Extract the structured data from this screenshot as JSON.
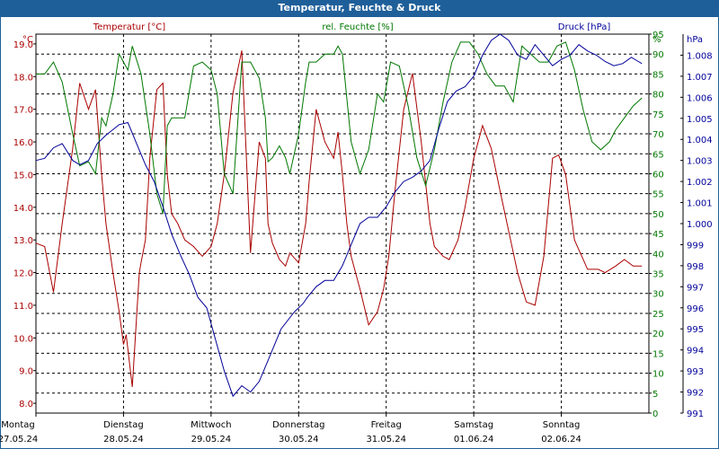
{
  "title": "Temperatur, Feuchte & Druck",
  "colors": {
    "temperature": "#aa0000",
    "humidity": "#007700",
    "pressure": "#000099",
    "titlebar": "#1f5f99"
  },
  "chart_data": {
    "type": "line",
    "series": [
      {
        "name": "Temperatur [°C]",
        "axis": "left",
        "x": [
          0,
          0.1,
          0.2,
          0.3,
          0.42,
          0.5,
          0.6,
          0.68,
          0.75,
          0.8,
          0.88,
          0.95,
          1.0,
          1.03,
          1.1,
          1.18,
          1.2,
          1.25,
          1.3,
          1.38,
          1.45,
          1.5,
          1.55,
          1.62,
          1.7,
          1.8,
          1.9,
          2.0,
          2.07,
          2.15,
          2.25,
          2.35,
          2.45,
          2.55,
          2.62,
          2.65,
          2.7,
          2.78,
          2.85,
          2.9,
          3.0,
          3.08,
          3.12,
          3.2,
          3.3,
          3.4,
          3.45,
          3.5,
          3.55,
          3.6,
          3.7,
          3.8,
          3.9,
          3.97,
          4.03,
          4.1,
          4.2,
          4.3,
          4.4,
          4.5,
          4.55,
          4.65,
          4.72,
          4.82,
          4.9,
          5.0,
          5.1,
          5.2,
          5.3,
          5.42,
          5.5,
          5.6,
          5.7,
          5.8,
          5.9,
          5.97,
          6.05,
          6.15,
          6.3,
          6.42,
          6.5,
          6.62,
          6.72,
          6.82,
          6.92
        ],
        "values": [
          12.9,
          12.8,
          11.4,
          13.5,
          15.8,
          17.8,
          17.0,
          17.6,
          15.0,
          13.5,
          12.0,
          10.8,
          9.8,
          10.1,
          8.5,
          12.0,
          12.3,
          13.0,
          15.5,
          17.6,
          17.8,
          15.0,
          13.8,
          13.5,
          13.0,
          12.8,
          12.5,
          12.8,
          13.5,
          15.0,
          17.5,
          18.8,
          12.6,
          16.0,
          15.5,
          13.5,
          12.9,
          12.4,
          12.2,
          12.6,
          12.3,
          13.5,
          14.8,
          17.0,
          16.0,
          15.5,
          16.3,
          15.0,
          13.5,
          12.5,
          11.5,
          10.4,
          10.8,
          11.5,
          12.5,
          14.5,
          17.0,
          18.1,
          16.0,
          13.5,
          12.8,
          12.5,
          12.4,
          13.0,
          14.0,
          15.5,
          16.5,
          15.8,
          14.5,
          13.0,
          12.0,
          11.1,
          11.0,
          12.5,
          15.5,
          15.6,
          15.0,
          13.0,
          12.1,
          12.1,
          12.0,
          12.2,
          12.4,
          12.2,
          12.2
        ]
      },
      {
        "name": "rel. Feuchte [%]",
        "axis": "right1",
        "x": [
          0,
          0.1,
          0.2,
          0.3,
          0.42,
          0.5,
          0.6,
          0.68,
          0.75,
          0.8,
          0.88,
          0.95,
          1.0,
          1.05,
          1.1,
          1.2,
          1.3,
          1.38,
          1.45,
          1.5,
          1.55,
          1.62,
          1.7,
          1.8,
          1.9,
          2.0,
          2.07,
          2.15,
          2.25,
          2.35,
          2.45,
          2.55,
          2.62,
          2.65,
          2.7,
          2.78,
          2.85,
          2.9,
          3.0,
          3.08,
          3.12,
          3.2,
          3.3,
          3.4,
          3.45,
          3.5,
          3.6,
          3.7,
          3.8,
          3.9,
          3.97,
          4.05,
          4.15,
          4.25,
          4.35,
          4.45,
          4.55,
          4.65,
          4.75,
          4.85,
          4.95,
          5.05,
          5.15,
          5.25,
          5.35,
          5.45,
          5.55,
          5.65,
          5.75,
          5.85,
          5.95,
          6.05,
          6.15,
          6.25,
          6.35,
          6.45,
          6.55,
          6.62,
          6.72,
          6.82,
          6.92
        ],
        "values": [
          85,
          85,
          88,
          83,
          70,
          62,
          63,
          60,
          74,
          72,
          80,
          90,
          88,
          86,
          92,
          85,
          70,
          55,
          50,
          72,
          74,
          74,
          74,
          87,
          88,
          86,
          80,
          60,
          55,
          88,
          88,
          84,
          74,
          63,
          64,
          67,
          64,
          60,
          70,
          83,
          88,
          88,
          90,
          90,
          92,
          90,
          68,
          60,
          66,
          80,
          78,
          88,
          87,
          77,
          64,
          57,
          66,
          78,
          88,
          93,
          93,
          90,
          85,
          82,
          82,
          78,
          92,
          90,
          88,
          88,
          92,
          93,
          86,
          76,
          68,
          66,
          68,
          71,
          74,
          77,
          79
        ]
      },
      {
        "name": "Druck [hPa]",
        "axis": "right2",
        "x": [
          0,
          0.1,
          0.2,
          0.3,
          0.42,
          0.5,
          0.6,
          0.7,
          0.8,
          0.95,
          1.05,
          1.15,
          1.25,
          1.35,
          1.45,
          1.55,
          1.65,
          1.75,
          1.85,
          1.95,
          2.05,
          2.15,
          2.25,
          2.35,
          2.45,
          2.55,
          2.65,
          2.8,
          2.95,
          3.05,
          3.1,
          3.2,
          3.3,
          3.4,
          3.5,
          3.6,
          3.7,
          3.8,
          3.9,
          4.0,
          4.1,
          4.2,
          4.3,
          4.4,
          4.5,
          4.6,
          4.7,
          4.8,
          4.9,
          5.0,
          5.1,
          5.2,
          5.3,
          5.4,
          5.5,
          5.6,
          5.7,
          5.8,
          5.9,
          6.0,
          6.1,
          6.2,
          6.3,
          6.4,
          6.5,
          6.6,
          6.7,
          6.8,
          6.88,
          6.92
        ],
        "values": [
          1003.0,
          1003.1,
          1003.6,
          1003.8,
          1003.0,
          1002.8,
          1003.0,
          1003.8,
          1004.2,
          1004.7,
          1004.8,
          1003.8,
          1002.8,
          1002.0,
          1000.8,
          999.5,
          998.5,
          997.6,
          996.5,
          996.0,
          994.5,
          993.0,
          991.8,
          992.3,
          992.0,
          992.5,
          993.5,
          995.0,
          995.8,
          996.2,
          996.5,
          997.0,
          997.3,
          997.3,
          998.0,
          999.0,
          1000.0,
          1000.3,
          1000.3,
          1000.8,
          1001.5,
          1002.0,
          1002.2,
          1002.5,
          1003.0,
          1004.5,
          1005.8,
          1006.3,
          1006.5,
          1007.0,
          1008.0,
          1008.7,
          1009.0,
          1008.7,
          1008.0,
          1007.8,
          1008.5,
          1008.0,
          1007.5,
          1007.8,
          1008.0,
          1008.5,
          1008.2,
          1008.0,
          1007.7,
          1007.5,
          1007.6,
          1007.9,
          1007.7,
          1007.6
        ]
      }
    ],
    "axes": {
      "left": {
        "label": "Temperatur [°C]",
        "unit": "°C",
        "ylim": [
          7.7,
          19.3
        ],
        "ticks": [
          "19.0",
          "18.0",
          "17.0",
          "16.0",
          "15.0",
          "14.0",
          "13.0",
          "12.0",
          "11.0",
          "10.0",
          "9.0",
          "8.0"
        ],
        "tick_values": [
          19,
          18,
          17,
          16,
          15,
          14,
          13,
          12,
          11,
          10,
          9,
          8
        ]
      },
      "right1": {
        "label": "rel. Feuchte [%]",
        "unit": "%",
        "ylim": [
          0,
          95
        ],
        "ticks": [
          "95",
          "90",
          "85",
          "80",
          "75",
          "70",
          "65",
          "60",
          "55",
          "50",
          "45",
          "40",
          "35",
          "30",
          "25",
          "20",
          "15",
          "10",
          "5",
          "0"
        ],
        "tick_values": [
          95,
          90,
          85,
          80,
          75,
          70,
          65,
          60,
          55,
          50,
          45,
          40,
          35,
          30,
          25,
          20,
          15,
          10,
          5,
          0
        ]
      },
      "right2": {
        "label": "Druck [hPa]",
        "unit": "hPa",
        "ylim": [
          991,
          1009
        ],
        "ticks": [
          "1.008",
          "1.007",
          "1.006",
          "1.005",
          "1.004",
          "1.003",
          "1.002",
          "1.001",
          "1.000",
          "999",
          "998",
          "997",
          "996",
          "995",
          "994",
          "993",
          "992",
          "991"
        ],
        "tick_values": [
          1008,
          1007,
          1006,
          1005,
          1004,
          1003,
          1002,
          1001,
          1000,
          999,
          998,
          997,
          996,
          995,
          994,
          993,
          992,
          991
        ]
      }
    },
    "xlim": [
      0,
      7.0
    ],
    "x_days": [
      {
        "day": "Montag",
        "date": "27.05.24",
        "x": 0
      },
      {
        "day": "Dienstag",
        "date": "28.05.24",
        "x": 1
      },
      {
        "day": "Mittwoch",
        "date": "29.05.24",
        "x": 2
      },
      {
        "day": "Donnerstag",
        "date": "30.05.24",
        "x": 3
      },
      {
        "day": "Freitag",
        "date": "31.05.24",
        "x": 4
      },
      {
        "day": "Samstag",
        "date": "01.06.24",
        "x": 5
      },
      {
        "day": "Sonntag",
        "date": "02.06.24",
        "x": 6
      }
    ],
    "grid": true,
    "legend": "top"
  }
}
